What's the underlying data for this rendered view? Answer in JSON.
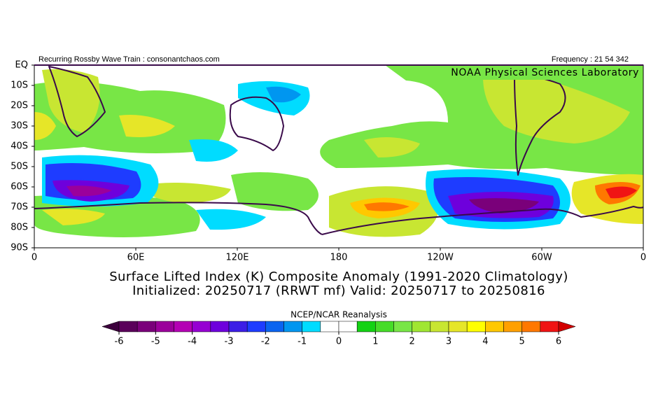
{
  "header": {
    "left": "Recurring Rossby Wave Train : consonantchaos.com",
    "right": "Frequency : 21 54 342",
    "lab": "NOAA Physical Sciences Laboratory"
  },
  "map": {
    "lat_ticks": [
      "EQ",
      "10S",
      "20S",
      "30S",
      "40S",
      "50S",
      "60S",
      "70S",
      "80S",
      "90S"
    ],
    "lon_ticks": [
      "0",
      "60E",
      "120E",
      "180",
      "120W",
      "60W",
      "0"
    ]
  },
  "title": {
    "line1": "Surface Lifted Index (K) Composite Anomaly (1991-2020 Climatology)",
    "line2": "Initialized: 20250717 (RRWT mf) Valid: 20250717 to 20250816"
  },
  "colorbar": {
    "title": "NCEP/NCAR Reanalysis",
    "ticks": [
      -6,
      -5,
      -4,
      -3,
      -2,
      -1,
      0,
      1,
      2,
      3,
      4,
      5,
      6
    ],
    "colors": [
      "#3c003c",
      "#5a005a",
      "#7a007a",
      "#9b009b",
      "#b400b4",
      "#9600d2",
      "#6e00dc",
      "#3c1ee6",
      "#1e3cff",
      "#0a64f0",
      "#0096f0",
      "#00dcff",
      "#ffffff",
      "#ffffff",
      "#14d214",
      "#46dc28",
      "#78e646",
      "#a0e632",
      "#c8e632",
      "#e6e628",
      "#ffff00",
      "#ffc800",
      "#ffa000",
      "#ff7800",
      "#f01414",
      "#d20000"
    ]
  }
}
